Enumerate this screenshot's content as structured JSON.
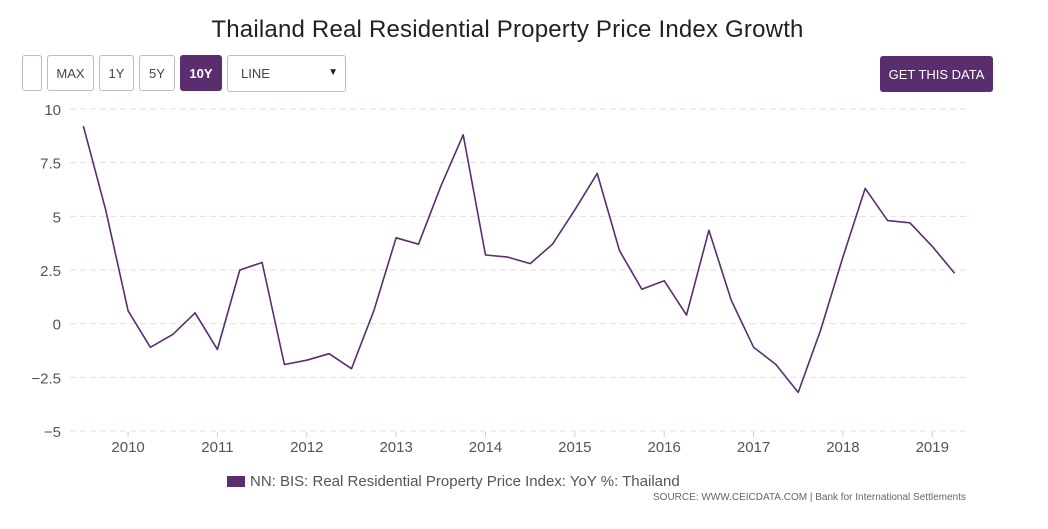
{
  "header": {
    "title": "Thailand Real Residential Property Price Index Growth"
  },
  "controls": {
    "range_buttons": [
      {
        "label": "",
        "active": false
      },
      {
        "label": "MAX",
        "active": false
      },
      {
        "label": "1Y",
        "active": false
      },
      {
        "label": "5Y",
        "active": false
      },
      {
        "label": "10Y",
        "active": true
      }
    ],
    "chart_type": {
      "selected": "LINE"
    },
    "get_data_label": "GET THIS DATA"
  },
  "legend": {
    "label": "NN: BIS: Real Residential Property Price Index: YoY %: Thailand"
  },
  "source": {
    "text": "SOURCE: WWW.CEICDATA.COM | Bank for International Settlements"
  },
  "colors": {
    "accent": "#5a2d6f",
    "line": "#5a2d6f",
    "grid": "#e6dbe6"
  },
  "chart_data": {
    "type": "line",
    "title": "Thailand Real Residential Property Price Index Growth",
    "xlabel": "",
    "ylabel": "",
    "ylim": [
      -5,
      10
    ],
    "yticks": [
      10,
      7.5,
      5,
      2.5,
      0,
      -2.5,
      -5
    ],
    "ytick_labels": [
      "10",
      "7.5",
      "5",
      "2.5",
      "0",
      "−2.5",
      "−5"
    ],
    "xlim": [
      2009.35,
      2019.4
    ],
    "xticks": [
      2010,
      2011,
      2012,
      2013,
      2014,
      2015,
      2016,
      2017,
      2018,
      2019
    ],
    "xtick_labels": [
      "2010",
      "2011",
      "2012",
      "2013",
      "2014",
      "2015",
      "2016",
      "2017",
      "2018",
      "2019"
    ],
    "grid": true,
    "series": [
      {
        "name": "NN: BIS: Real Residential Property Price Index: YoY %: Thailand",
        "x": [
          2009.5,
          2009.75,
          2010.0,
          2010.25,
          2010.5,
          2010.75,
          2011.0,
          2011.25,
          2011.5,
          2011.75,
          2012.0,
          2012.25,
          2012.5,
          2012.75,
          2013.0,
          2013.25,
          2013.5,
          2013.75,
          2014.0,
          2014.25,
          2014.5,
          2014.75,
          2015.0,
          2015.25,
          2015.5,
          2015.75,
          2016.0,
          2016.25,
          2016.5,
          2016.75,
          2017.0,
          2017.25,
          2017.5,
          2017.75,
          2018.0,
          2018.25,
          2018.5,
          2018.75,
          2019.0,
          2019.25
        ],
        "values": [
          9.2,
          5.3,
          0.6,
          -1.1,
          -0.5,
          0.5,
          -1.2,
          2.5,
          2.85,
          -1.9,
          -1.7,
          -1.4,
          -2.1,
          0.6,
          4.0,
          3.7,
          6.4,
          8.8,
          3.2,
          3.1,
          2.8,
          3.7,
          5.3,
          7.0,
          3.4,
          1.6,
          2.0,
          0.4,
          4.35,
          1.1,
          -1.1,
          -1.9,
          -3.2,
          -0.3,
          3.1,
          6.3,
          4.8,
          4.7,
          3.6,
          2.35
        ]
      }
    ]
  }
}
